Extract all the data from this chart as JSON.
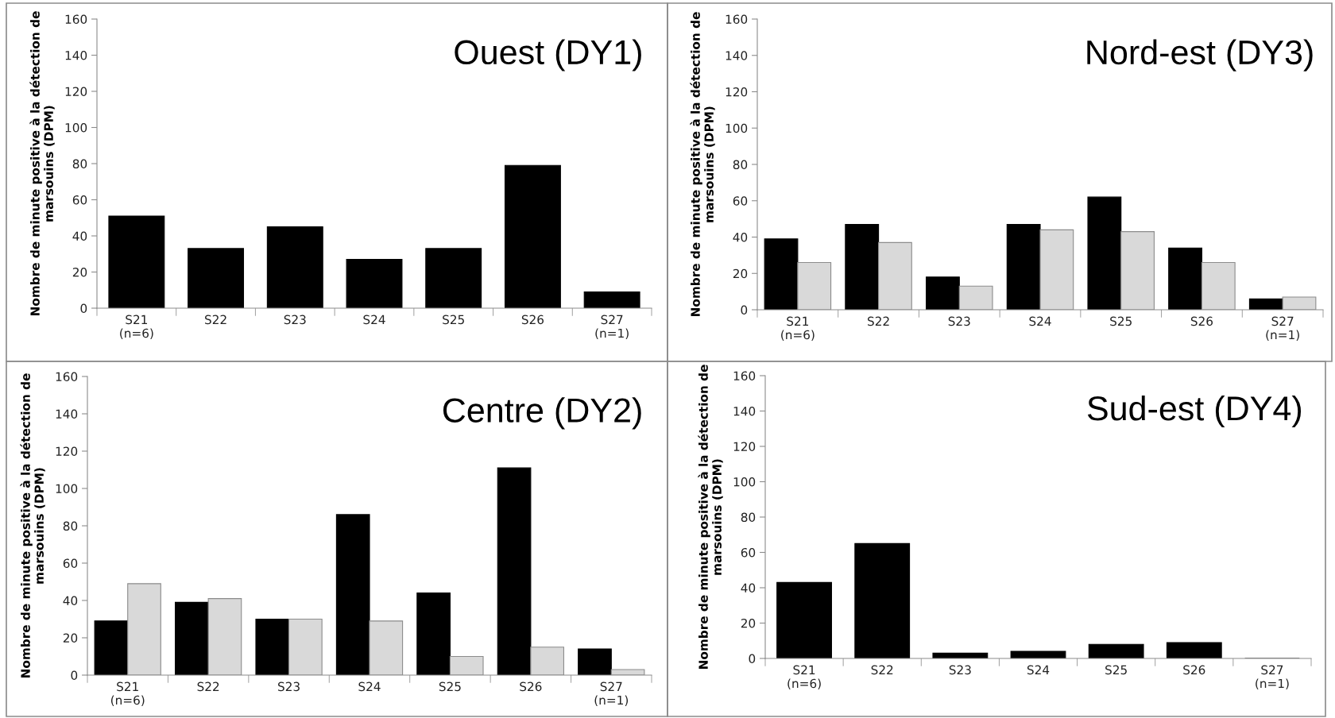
{
  "chart_data": [
    {
      "type": "bar",
      "title": "Ouest (DY1)",
      "ylabel": "Nombre de minute positive à la détection de\nmarsouins (DPM)",
      "categories": [
        "S21\n(n=6)",
        "S22",
        "S23",
        "S24",
        "S25",
        "S26",
        "S27\n(n=1)"
      ],
      "ylim": [
        0,
        160
      ],
      "yticks": [
        0,
        20,
        40,
        60,
        80,
        100,
        120,
        140,
        160
      ],
      "grid": false,
      "series": [
        {
          "color": "#000000",
          "values": [
            51,
            33,
            45,
            27,
            33,
            79,
            9
          ]
        }
      ]
    },
    {
      "type": "bar",
      "title": "Nord-est (DY3)",
      "ylabel": "Nombre de minute positive à la détection de\nmarsouins (DPM)",
      "categories": [
        "S21\n(n=6)",
        "S22",
        "S23",
        "S24",
        "S25",
        "S26",
        "S27\n(n=1)"
      ],
      "ylim": [
        0,
        160
      ],
      "yticks": [
        0,
        20,
        40,
        60,
        80,
        100,
        120,
        140,
        160
      ],
      "grid": false,
      "series": [
        {
          "color": "#000000",
          "values": [
            39,
            47,
            18,
            47,
            62,
            34,
            6
          ]
        },
        {
          "color": "#d9d9d9",
          "values": [
            26,
            37,
            13,
            44,
            43,
            26,
            7
          ]
        }
      ]
    },
    {
      "type": "bar",
      "title": "Centre (DY2)",
      "ylabel": "Nombre de minute positive à la détection de\nmarsouins (DPM)",
      "categories": [
        "S21\n(n=6)",
        "S22",
        "S23",
        "S24",
        "S25",
        "S26",
        "S27\n(n=1)"
      ],
      "ylim": [
        0,
        160
      ],
      "yticks": [
        0,
        20,
        40,
        60,
        80,
        100,
        120,
        140,
        160
      ],
      "grid": false,
      "series": [
        {
          "color": "#000000",
          "values": [
            29,
            39,
            30,
            86,
            44,
            111,
            14
          ]
        },
        {
          "color": "#d9d9d9",
          "values": [
            49,
            41,
            30,
            29,
            10,
            15,
            3
          ]
        }
      ]
    },
    {
      "type": "bar",
      "title": "Sud-est (DY4)",
      "ylabel": "Nombre de minute positive à la détection de\nmarsouins (DPM)",
      "categories": [
        "S21\n(n=6)",
        "S22",
        "S23",
        "S24",
        "S25",
        "S26",
        "S27\n(n=1)"
      ],
      "ylim": [
        0,
        160
      ],
      "yticks": [
        0,
        20,
        40,
        60,
        80,
        100,
        120,
        140,
        160
      ],
      "grid": false,
      "series": [
        {
          "color": "#000000",
          "values": [
            43,
            65,
            3,
            4,
            8,
            9,
            0
          ]
        }
      ]
    }
  ]
}
